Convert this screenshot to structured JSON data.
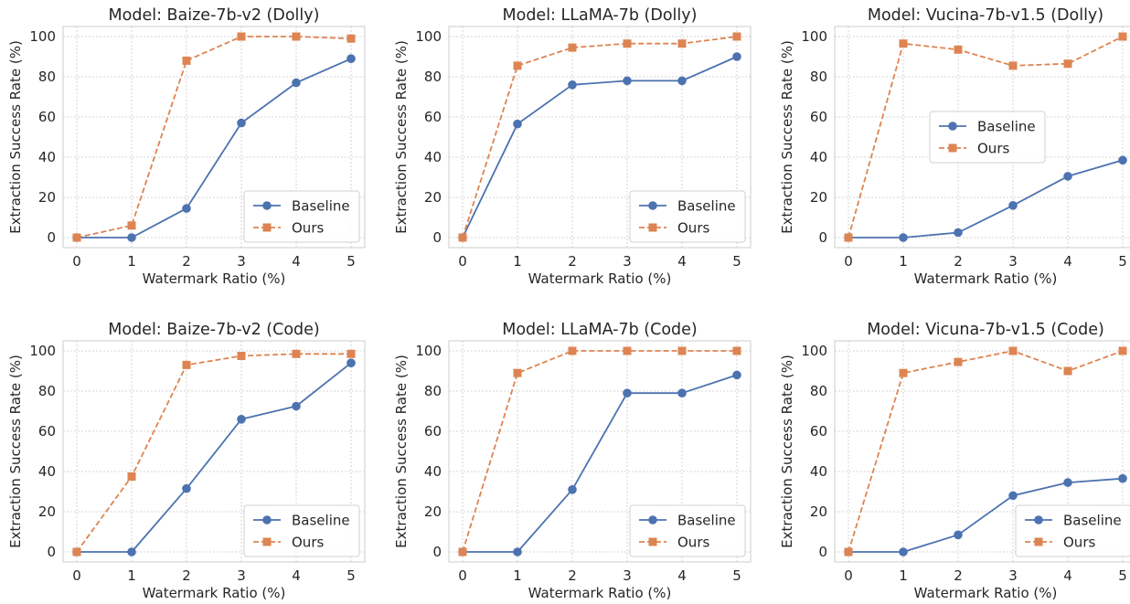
{
  "chart_data": [
    {
      "type": "line",
      "title": "Model: Baize-7b-v2 (Dolly)",
      "xlabel": "Watermark Ratio (%)",
      "ylabel": "Extraction Success Rate (%)",
      "x": [
        0,
        1,
        2,
        3,
        4,
        5
      ],
      "xlim": [
        -0.25,
        5.25
      ],
      "ylim": [
        -5,
        105
      ],
      "yticks": [
        0,
        20,
        40,
        60,
        80,
        100
      ],
      "grid": true,
      "legend_position": "lower-right",
      "series": [
        {
          "name": "Baseline",
          "values": [
            0,
            0,
            14.5,
            57,
            77,
            89
          ],
          "color": "#4c72b0",
          "marker": "circle",
          "dash": "solid"
        },
        {
          "name": "Ours",
          "values": [
            0,
            6,
            88,
            100,
            100,
            99
          ],
          "color": "#dd8452",
          "marker": "square",
          "dash": "dashed"
        }
      ]
    },
    {
      "type": "line",
      "title": "Model: LLaMA-7b (Dolly)",
      "xlabel": "Watermark Ratio (%)",
      "ylabel": "Extraction Success Rate (%)",
      "x": [
        0,
        1,
        2,
        3,
        4,
        5
      ],
      "xlim": [
        -0.25,
        5.25
      ],
      "ylim": [
        -5,
        105
      ],
      "yticks": [
        0,
        20,
        40,
        60,
        80,
        100
      ],
      "grid": true,
      "legend_position": "lower-right",
      "series": [
        {
          "name": "Baseline",
          "values": [
            0,
            56.5,
            76,
            78,
            78,
            90
          ],
          "color": "#4c72b0",
          "marker": "circle",
          "dash": "solid"
        },
        {
          "name": "Ours",
          "values": [
            0,
            85.5,
            94.5,
            96.5,
            96.5,
            100
          ],
          "color": "#dd8452",
          "marker": "square",
          "dash": "dashed"
        }
      ]
    },
    {
      "type": "line",
      "title": "Model: Vucina-7b-v1.5 (Dolly)",
      "xlabel": "Watermark Ratio (%)",
      "ylabel": "Extraction Success Rate (%)",
      "x": [
        0,
        1,
        2,
        3,
        4,
        5
      ],
      "xlim": [
        -0.25,
        5.25
      ],
      "ylim": [
        -5,
        105
      ],
      "yticks": [
        0,
        20,
        40,
        60,
        80,
        100
      ],
      "grid": true,
      "legend_position": "center-right",
      "series": [
        {
          "name": "Baseline",
          "values": [
            0,
            0,
            2.5,
            16,
            30.5,
            38.5
          ],
          "color": "#4c72b0",
          "marker": "circle",
          "dash": "solid"
        },
        {
          "name": "Ours",
          "values": [
            0,
            96.5,
            93.5,
            85.5,
            86.5,
            100
          ],
          "color": "#dd8452",
          "marker": "square",
          "dash": "dashed"
        }
      ]
    },
    {
      "type": "line",
      "title": "Model: Baize-7b-v2 (Code)",
      "xlabel": "Watermark Ratio (%)",
      "ylabel": "Extraction Success Rate (%)",
      "x": [
        0,
        1,
        2,
        3,
        4,
        5
      ],
      "xlim": [
        -0.25,
        5.25
      ],
      "ylim": [
        -5,
        105
      ],
      "yticks": [
        0,
        20,
        40,
        60,
        80,
        100
      ],
      "grid": true,
      "legend_position": "lower-right",
      "series": [
        {
          "name": "Baseline",
          "values": [
            0,
            0,
            31.5,
            66,
            72.5,
            94
          ],
          "color": "#4c72b0",
          "marker": "circle",
          "dash": "solid"
        },
        {
          "name": "Ours",
          "values": [
            0,
            37.5,
            93,
            97.5,
            98.5,
            98.5
          ],
          "color": "#dd8452",
          "marker": "square",
          "dash": "dashed"
        }
      ]
    },
    {
      "type": "line",
      "title": "Model: LLaMA-7b (Code)",
      "xlabel": "Watermark Ratio (%)",
      "ylabel": "Extraction Success Rate (%)",
      "x": [
        0,
        1,
        2,
        3,
        4,
        5
      ],
      "xlim": [
        -0.25,
        5.25
      ],
      "ylim": [
        -5,
        105
      ],
      "yticks": [
        0,
        20,
        40,
        60,
        80,
        100
      ],
      "grid": true,
      "legend_position": "lower-right",
      "series": [
        {
          "name": "Baseline",
          "values": [
            0,
            0,
            31,
            79,
            79,
            88
          ],
          "color": "#4c72b0",
          "marker": "circle",
          "dash": "solid"
        },
        {
          "name": "Ours",
          "values": [
            0,
            89,
            100,
            100,
            100,
            100
          ],
          "color": "#dd8452",
          "marker": "square",
          "dash": "dashed"
        }
      ]
    },
    {
      "type": "line",
      "title": "Model: Vicuna-7b-v1.5 (Code)",
      "xlabel": "Watermark Ratio (%)",
      "ylabel": "Extraction Success Rate (%)",
      "x": [
        0,
        1,
        2,
        3,
        4,
        5
      ],
      "xlim": [
        -0.25,
        5.25
      ],
      "ylim": [
        -5,
        105
      ],
      "yticks": [
        0,
        20,
        40,
        60,
        80,
        100
      ],
      "grid": true,
      "legend_position": "lower-right",
      "series": [
        {
          "name": "Baseline",
          "values": [
            0,
            0,
            8.5,
            28,
            34.5,
            36.5
          ],
          "color": "#4c72b0",
          "marker": "circle",
          "dash": "solid"
        },
        {
          "name": "Ours",
          "values": [
            0,
            89,
            94.5,
            100,
            90,
            100
          ],
          "color": "#dd8452",
          "marker": "square",
          "dash": "dashed"
        }
      ]
    }
  ]
}
